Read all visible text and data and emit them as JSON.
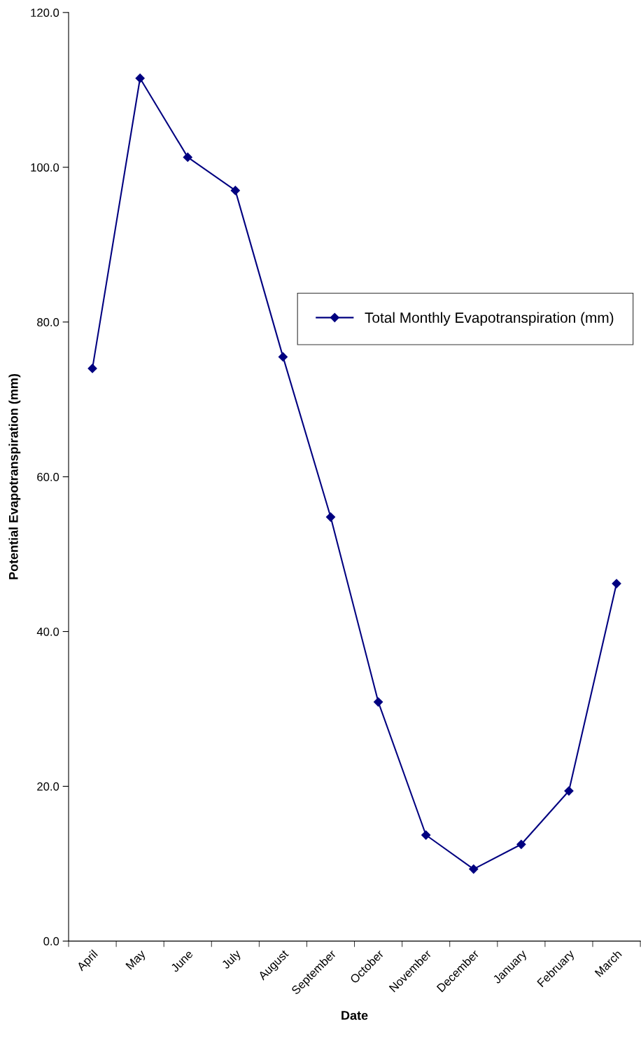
{
  "chart_data": {
    "type": "line",
    "xlabel": "Date",
    "ylabel": "Potential Evapotranspiration (mm)",
    "categories": [
      "April",
      "May",
      "June",
      "July",
      "August",
      "September",
      "October",
      "November",
      "December",
      "January",
      "February",
      "March"
    ],
    "series": [
      {
        "name": "Total Monthly Evapotranspiration (mm)",
        "color": "#000080",
        "values": [
          74.0,
          111.5,
          101.3,
          97.0,
          75.5,
          54.8,
          30.9,
          13.7,
          9.3,
          12.5,
          19.4,
          46.2
        ]
      }
    ],
    "ylim": [
      0,
      120
    ],
    "yticks": [
      {
        "value": 0,
        "label": "0.0"
      },
      {
        "value": 20,
        "label": "20.0"
      },
      {
        "value": 40,
        "label": "40.0"
      },
      {
        "value": 60,
        "label": "60.0"
      },
      {
        "value": 80,
        "label": "80.0"
      },
      {
        "value": 100,
        "label": "100.0"
      },
      {
        "value": 120,
        "label": "120.0"
      }
    ],
    "grid": false,
    "legend": "right",
    "marker": "diamond",
    "line_style": "solid"
  }
}
